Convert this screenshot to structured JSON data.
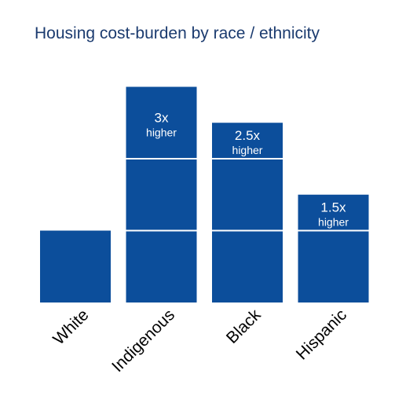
{
  "chart_data": {
    "type": "bar",
    "title": "Housing cost-burden by race / ethnicity",
    "categories": [
      "White",
      "Indigenous",
      "Black",
      "Hispanic"
    ],
    "values": [
      1,
      3,
      2.5,
      1.5
    ],
    "annotations": [
      {
        "category": "Indigenous",
        "multiplier": "3x",
        "text": "higher"
      },
      {
        "category": "Black",
        "multiplier": "2.5x",
        "text": "higher"
      },
      {
        "category": "Hispanic",
        "multiplier": "1.5x",
        "text": "higher"
      }
    ],
    "ylim": [
      0,
      3
    ],
    "grid": false,
    "colors": {
      "bar": "#0c4e9b",
      "divider": "#ffffff",
      "title": "#1b3b6f",
      "label": "#000000"
    }
  }
}
